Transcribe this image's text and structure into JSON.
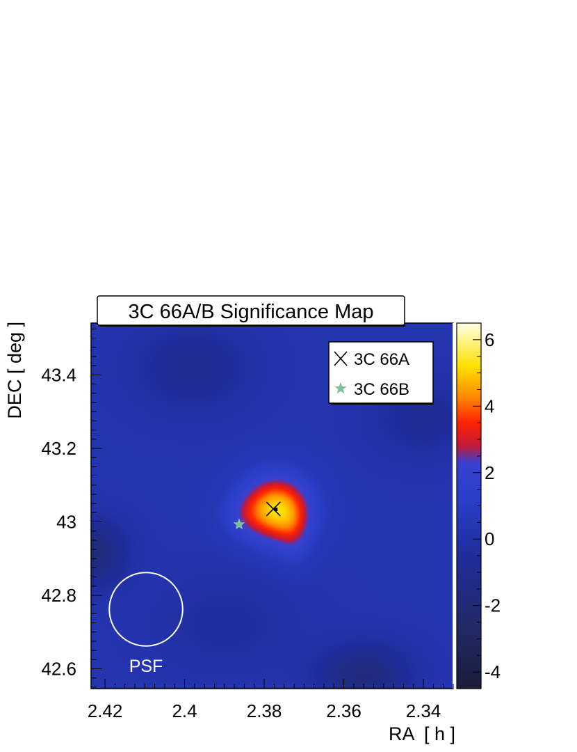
{
  "chart_data": {
    "type": "heatmap",
    "title": "3C 66A/B Significance Map",
    "xlabel": "RA  [ h ]",
    "ylabel": "DEC [ deg ]",
    "xlim": [
      2.4235,
      2.3325
    ],
    "ylim": [
      42.546,
      43.541
    ],
    "x_ticks": [
      2.42,
      2.4,
      2.38,
      2.36,
      2.34
    ],
    "x_tick_labels": [
      "2.42",
      "2.4",
      "2.38",
      "2.36",
      "2.34"
    ],
    "y_ticks": [
      42.6,
      42.8,
      43.0,
      43.2,
      43.4
    ],
    "y_tick_labels": [
      "42.6",
      "42.8",
      "43",
      "43.2",
      "43.4"
    ],
    "colorbar": {
      "range": [
        -4.5,
        6.5
      ],
      "ticks": [
        -4,
        -2,
        0,
        2,
        4,
        6
      ],
      "tick_labels": [
        "-4",
        "-2",
        "0",
        "2",
        "4",
        "6"
      ],
      "stops": [
        {
          "v": -4.5,
          "color": "#1b1c3a"
        },
        {
          "v": -2.5,
          "color": "#222a6a"
        },
        {
          "v": -0.5,
          "color": "#1f2c9a"
        },
        {
          "v": 1.2,
          "color": "#2a3fc8"
        },
        {
          "v": 2.3,
          "color": "#3a40d0"
        },
        {
          "v": 2.8,
          "color": "#c01a3c"
        },
        {
          "v": 3.5,
          "color": "#ff2200"
        },
        {
          "v": 4.3,
          "color": "#ff8c00"
        },
        {
          "v": 5.2,
          "color": "#ffe000"
        },
        {
          "v": 6.5,
          "color": "#ffffe8"
        }
      ]
    },
    "blobs": [
      {
        "ra": 2.377,
        "dec": 43.035,
        "amp": 4.7,
        "sigma_ra": 0.0058,
        "sigma_dec": 0.062
      },
      {
        "ra": 2.3725,
        "dec": 42.965,
        "amp": 1.1,
        "sigma_ra": 0.003,
        "sigma_dec": 0.055
      },
      {
        "ra": 2.3855,
        "dec": 43.02,
        "amp": 0.8,
        "sigma_ra": 0.004,
        "sigma_dec": 0.04
      },
      {
        "ra": 2.4235,
        "dec": 42.915,
        "amp": -2.2,
        "sigma_ra": 0.006,
        "sigma_dec": 0.06
      },
      {
        "ra": 2.355,
        "dec": 42.58,
        "amp": -2.0,
        "sigma_ra": 0.008,
        "sigma_dec": 0.06
      },
      {
        "ra": 2.398,
        "dec": 43.42,
        "amp": -1.2,
        "sigma_ra": 0.01,
        "sigma_dec": 0.08
      },
      {
        "ra": 2.34,
        "dec": 43.28,
        "amp": -1.0,
        "sigma_ra": 0.009,
        "sigma_dec": 0.07
      },
      {
        "ra": 2.39,
        "dec": 42.72,
        "amp": -0.7,
        "sigma_ra": 0.012,
        "sigma_dec": 0.09
      }
    ],
    "base_level": 0.3,
    "markers": [
      {
        "label": "3C 66A",
        "symbol": "x",
        "ra": 2.3777,
        "dec": 43.035,
        "color": "#000000"
      },
      {
        "label": "3C 66B",
        "symbol": "star",
        "ra": 2.3863,
        "dec": 42.993,
        "color": "#7fbf9a"
      }
    ],
    "legend": {
      "position": "top-right",
      "entries": [
        {
          "label": "3C 66A",
          "symbol": "x"
        },
        {
          "label": "3C 66B",
          "symbol": "star"
        }
      ]
    },
    "psf": {
      "label": "PSF",
      "ra": 2.4097,
      "dec": 42.762,
      "radius_deg": 0.1
    }
  }
}
